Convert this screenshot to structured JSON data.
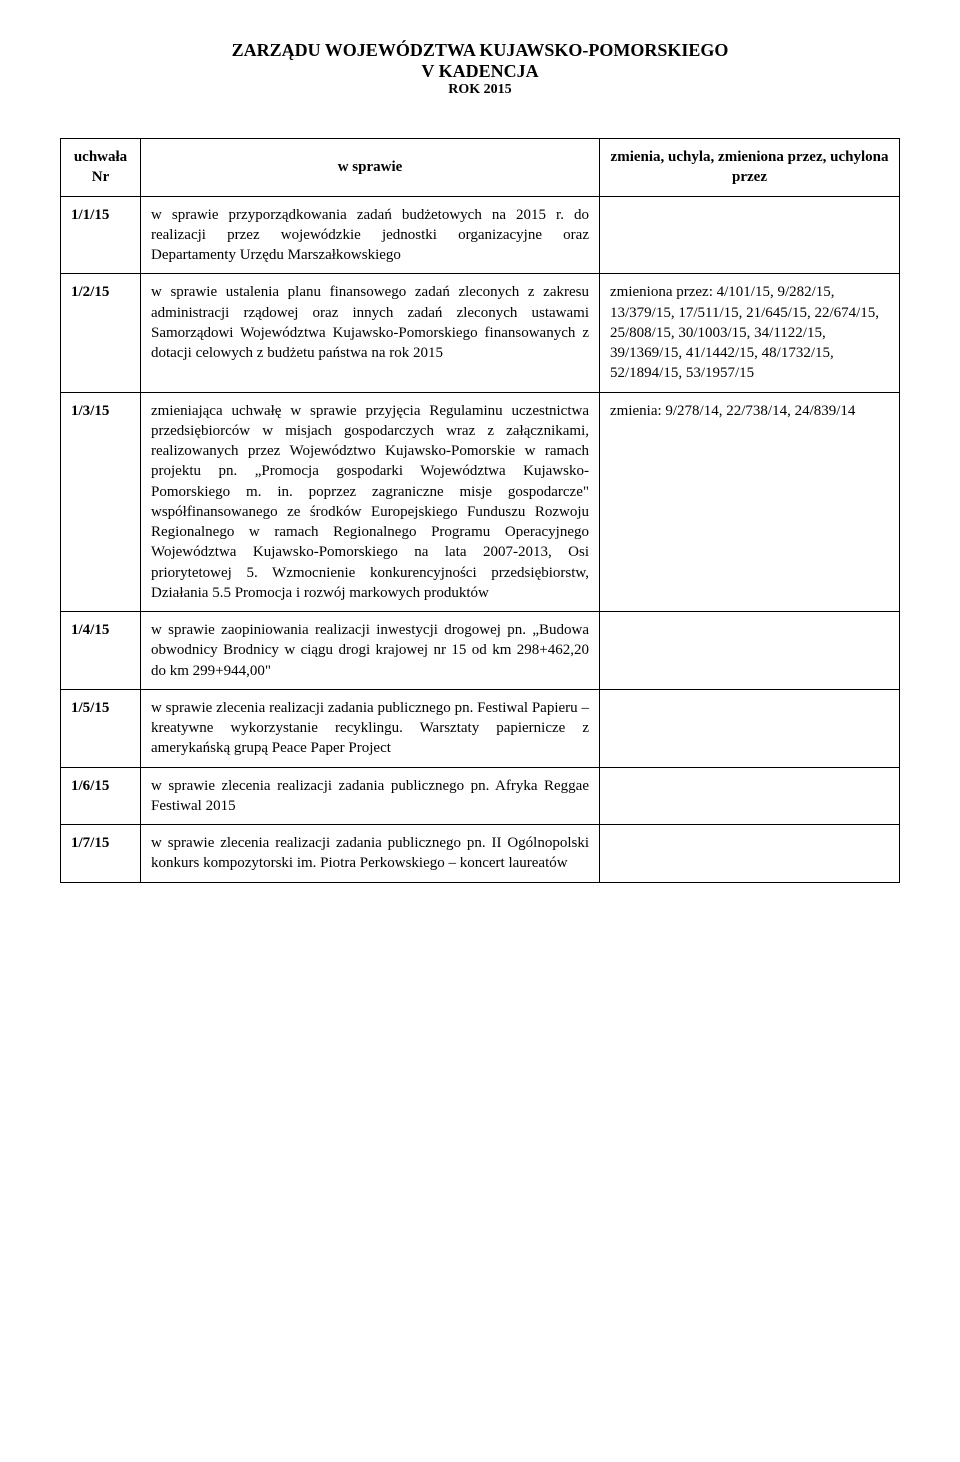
{
  "header": {
    "line1": "ZARZĄDU WOJEWÓDZTWA KUJAWSKO-POMORSKIEGO",
    "line2": "V KADENCJA",
    "line3": "ROK 2015"
  },
  "table": {
    "columns": {
      "id": "uchwała Nr",
      "desc": "w sprawie",
      "notes": "zmienia, uchyla, zmieniona przez, uchylona przez"
    },
    "rows": [
      {
        "id": "1/1/15",
        "desc": "w sprawie przyporządkowania zadań budżetowych na 2015 r. do realizacji przez wojewódzkie jednostki organizacyjne oraz Departamenty Urzędu Marszałkowskiego",
        "notes": ""
      },
      {
        "id": "1/2/15",
        "desc": "w sprawie ustalenia planu finansowego zadań zleconych z zakresu administracji rządowej oraz innych zadań zleconych ustawami Samorządowi Województwa Kujawsko-Pomorskiego finansowanych z dotacji celowych z budżetu państwa na rok 2015",
        "notes": "zmieniona przez: 4/101/15, 9/282/15, 13/379/15, 17/511/15, 21/645/15, 22/674/15, 25/808/15, 30/1003/15, 34/1122/15, 39/1369/15, 41/1442/15, 48/1732/15, 52/1894/15, 53/1957/15"
      },
      {
        "id": "1/3/15",
        "desc": "zmieniająca uchwałę w sprawie przyjęcia Regulaminu uczestnictwa przedsiębiorców w misjach gospodarczych wraz z załącznikami, realizowanych przez Województwo Kujawsko-Pomorskie w ramach projektu pn. „Promocja gospodarki Województwa Kujawsko-Pomorskiego m. in. poprzez zagraniczne misje gospodarcze\" współfinansowanego ze środków Europejskiego Funduszu Rozwoju Regionalnego w ramach Regionalnego Programu Operacyjnego Województwa Kujawsko-Pomorskiego na lata 2007-2013, Osi priorytetowej 5. Wzmocnienie konkurencyjności przedsiębiorstw, Działania 5.5 Promocja i rozwój markowych produktów",
        "notes": "zmienia: 9/278/14, 22/738/14, 24/839/14"
      },
      {
        "id": "1/4/15",
        "desc": "w sprawie zaopiniowania realizacji inwestycji drogowej pn. „Budowa obwodnicy Brodnicy w ciągu drogi krajowej nr 15 od km 298+462,20 do km 299+944,00\"",
        "notes": ""
      },
      {
        "id": "1/5/15",
        "desc": "w sprawie zlecenia realizacji zadania publicznego pn. Festiwal Papieru – kreatywne wykorzystanie recyklingu. Warsztaty papiernicze z amerykańską grupą Peace Paper Project",
        "notes": ""
      },
      {
        "id": "1/6/15",
        "desc": "w sprawie zlecenia realizacji zadania publicznego pn. Afryka Reggae Festiwal 2015",
        "notes": ""
      },
      {
        "id": "1/7/15",
        "desc": "w sprawie zlecenia realizacji zadania publicznego pn. II Ogólnopolski konkurs kompozytorski im. Piotra Perkowskiego – koncert laureatów",
        "notes": ""
      }
    ]
  }
}
